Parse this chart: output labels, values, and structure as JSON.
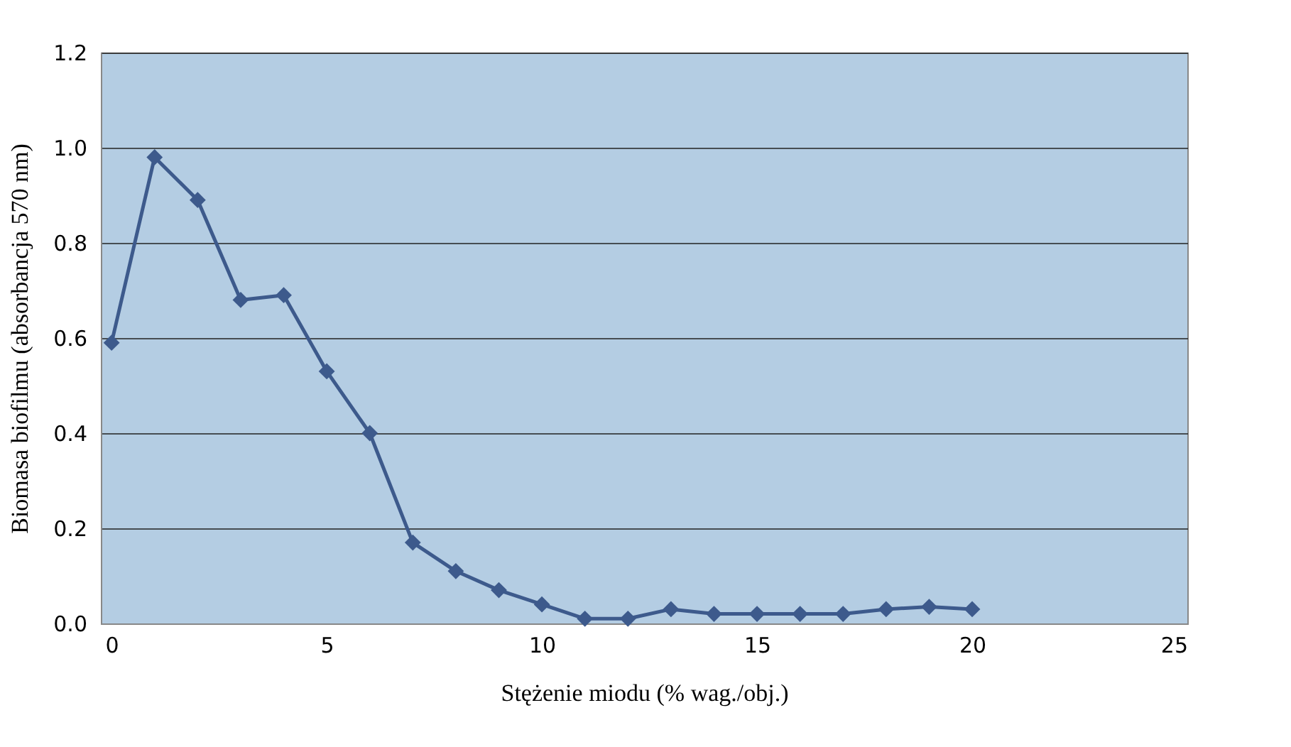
{
  "chart_data": {
    "type": "line",
    "xlabel": "Stężenie miodu (% wag./obj.)",
    "ylabel": "Biomasa biofilmu (absorbancja 570 nm)",
    "x": [
      0,
      1,
      2,
      3,
      4,
      5,
      6,
      7,
      8,
      9,
      10,
      11,
      12,
      13,
      14,
      15,
      16,
      17,
      18,
      19,
      20
    ],
    "series": [
      {
        "color": "#3d5a8c",
        "values": [
          0.59,
          0.98,
          0.89,
          0.68,
          0.69,
          0.53,
          0.4,
          0.17,
          0.11,
          0.07,
          0.04,
          0.01,
          0.01,
          0.03,
          0.02,
          0.02,
          0.02,
          0.02,
          0.03,
          0.035,
          0.03
        ]
      }
    ],
    "xlim": [
      -0.25,
      25
    ],
    "xticks": [
      0,
      5,
      10,
      15,
      20,
      25
    ],
    "ylim": [
      0,
      1.2
    ],
    "yticks": [
      {
        "value": 0,
        "label": "0.0"
      },
      {
        "value": 0.2,
        "label": "0.2"
      },
      {
        "value": 0.4,
        "label": "0.4"
      },
      {
        "value": 0.6,
        "label": "0.6"
      },
      {
        "value": 0.8,
        "label": "0.8"
      },
      {
        "value": 1,
        "label": "1.0"
      },
      {
        "value": 1.2,
        "label": "1.2"
      }
    ],
    "grid": "y",
    "marker": "diamond",
    "line_style": "solid"
  }
}
